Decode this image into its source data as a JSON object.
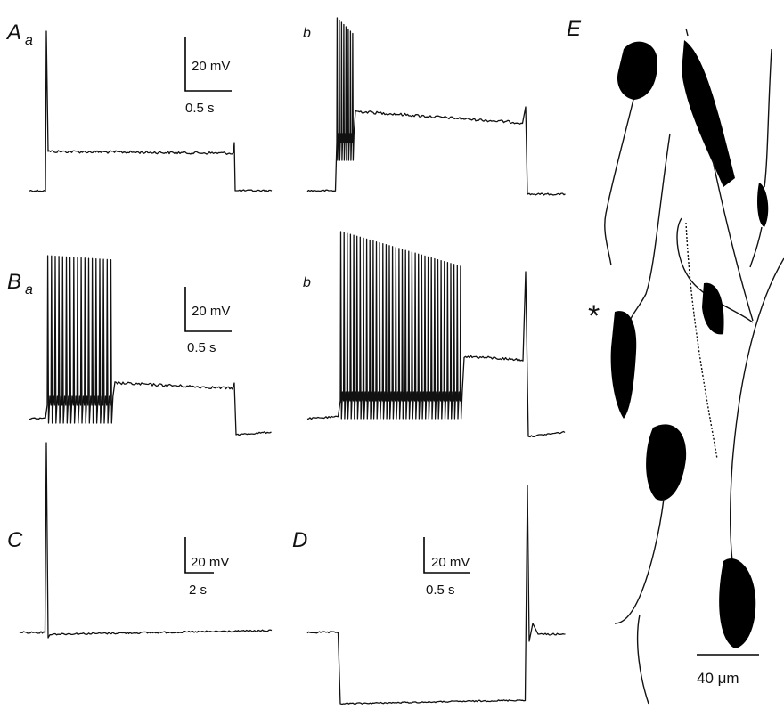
{
  "panels": [
    {
      "label": "A",
      "sublabel": "a",
      "scale_bar": {
        "voltage": "20 mV",
        "time": "0.5 s"
      }
    },
    {
      "sublabel": "b"
    },
    {
      "label": "B",
      "sublabel": "a",
      "scale_bar": {
        "voltage": "20 mV",
        "time": "0.5 s"
      }
    },
    {
      "sublabel": "b"
    },
    {
      "label": "C",
      "scale_bar": {
        "voltage": "20 mV",
        "time": "2 s"
      }
    },
    {
      "label": "D",
      "scale_bar": {
        "voltage": "20 mV",
        "time": "0.5 s"
      }
    },
    {
      "label": "E",
      "marker": "*",
      "scale_bar": {
        "length": "40 μm"
      }
    }
  ]
}
